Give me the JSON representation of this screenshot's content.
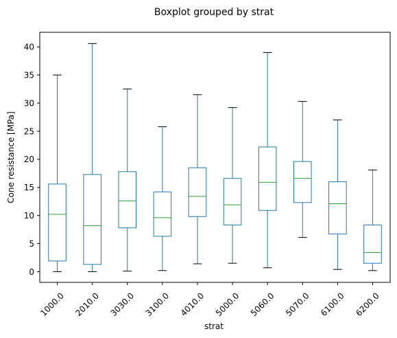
{
  "chart_data": {
    "type": "box",
    "title": "Boxplot grouped by strat",
    "xlabel": "strat",
    "ylabel": "Cone resistance [MPa]",
    "ylim": [
      -1.9,
      42.6
    ],
    "yticks": [
      0,
      5,
      10,
      15,
      20,
      25,
      30,
      35,
      40
    ],
    "grid": false,
    "colors": {
      "box": "#1f77b4",
      "median": "#2ca02c",
      "cap": "#000000",
      "axis": "#000000"
    },
    "categories": [
      "1000.0",
      "2010.0",
      "3030.0",
      "3100.0",
      "4010.0",
      "5000.0",
      "5060.0",
      "5070.0",
      "6100.0",
      "6200.0"
    ],
    "boxes": [
      {
        "whisker_low": 0.0,
        "q1": 1.9,
        "median": 10.2,
        "q3": 15.6,
        "whisker_high": 35.0
      },
      {
        "whisker_low": 0.0,
        "q1": 1.3,
        "median": 8.2,
        "q3": 17.3,
        "whisker_high": 40.6
      },
      {
        "whisker_low": 0.1,
        "q1": 7.8,
        "median": 12.6,
        "q3": 17.8,
        "whisker_high": 32.5
      },
      {
        "whisker_low": 0.2,
        "q1": 6.3,
        "median": 9.6,
        "q3": 14.2,
        "whisker_high": 25.8
      },
      {
        "whisker_low": 1.4,
        "q1": 9.8,
        "median": 13.4,
        "q3": 18.5,
        "whisker_high": 31.5
      },
      {
        "whisker_low": 1.5,
        "q1": 8.3,
        "median": 11.9,
        "q3": 16.6,
        "whisker_high": 29.2
      },
      {
        "whisker_low": 0.7,
        "q1": 10.9,
        "median": 15.9,
        "q3": 22.2,
        "whisker_high": 39.0
      },
      {
        "whisker_low": 6.1,
        "q1": 12.3,
        "median": 16.6,
        "q3": 19.6,
        "whisker_high": 30.3
      },
      {
        "whisker_low": 0.4,
        "q1": 6.7,
        "median": 12.1,
        "q3": 16.0,
        "whisker_high": 27.0
      },
      {
        "whisker_low": 0.2,
        "q1": 1.5,
        "median": 3.4,
        "q3": 8.3,
        "whisker_high": 18.1
      }
    ]
  }
}
